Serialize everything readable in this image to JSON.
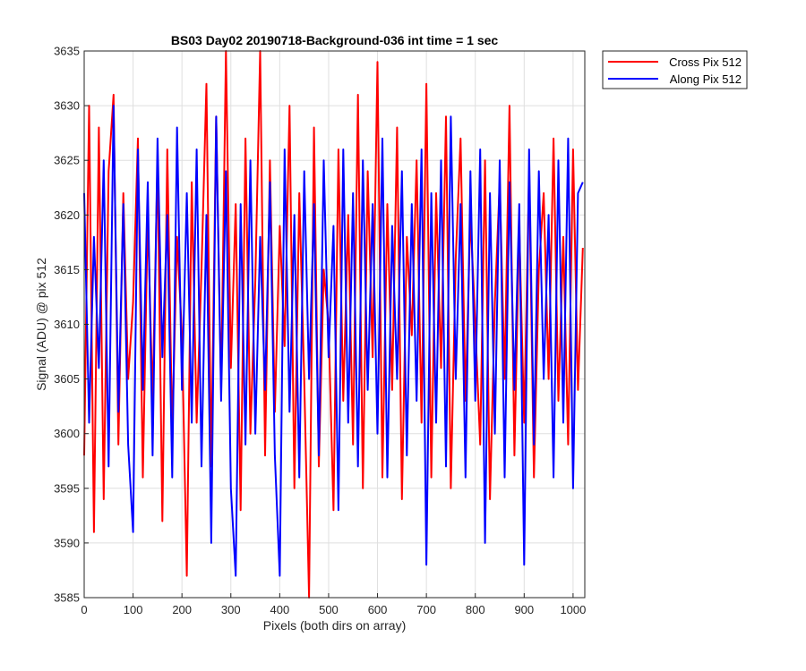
{
  "chart_data": {
    "type": "line",
    "title": "BS03 Day02 20190718-Background-036 int time = 1 sec",
    "xlabel": "Pixels (both dirs on array)",
    "ylabel": "Signal (ADU) @ pix 512",
    "xlim": [
      0,
      1024
    ],
    "ylim": [
      3585,
      3635
    ],
    "xticks": [
      "0",
      "100",
      "200",
      "300",
      "400",
      "500",
      "600",
      "700",
      "800",
      "900",
      "1000"
    ],
    "yticks": [
      "3585",
      "3590",
      "3595",
      "3600",
      "3605",
      "3610",
      "3615",
      "3620",
      "3625",
      "3630",
      "3635"
    ],
    "grid": true,
    "legend_position": "outside-top-right",
    "series": [
      {
        "name": "Cross Pix 512",
        "color": "#ff0000",
        "x": [
          0,
          10,
          20,
          30,
          40,
          50,
          60,
          70,
          80,
          90,
          100,
          110,
          120,
          130,
          140,
          150,
          160,
          170,
          180,
          190,
          200,
          210,
          220,
          230,
          240,
          250,
          260,
          270,
          280,
          290,
          300,
          310,
          320,
          330,
          340,
          350,
          360,
          370,
          380,
          390,
          400,
          410,
          420,
          430,
          440,
          450,
          460,
          470,
          480,
          490,
          500,
          510,
          520,
          530,
          540,
          550,
          560,
          570,
          580,
          590,
          600,
          610,
          620,
          630,
          640,
          650,
          660,
          670,
          680,
          690,
          700,
          710,
          720,
          730,
          740,
          750,
          760,
          770,
          780,
          790,
          800,
          810,
          820,
          830,
          840,
          850,
          860,
          870,
          880,
          890,
          900,
          910,
          920,
          930,
          940,
          950,
          960,
          970,
          980,
          990,
          1000,
          1010,
          1020
        ],
        "y": [
          3598,
          3630,
          3591,
          3628,
          3594,
          3624,
          3631,
          3599,
          3622,
          3605,
          3612,
          3627,
          3596,
          3620,
          3603,
          3625,
          3592,
          3626,
          3600,
          3618,
          3609,
          3587,
          3623,
          3601,
          3615,
          3632,
          3597,
          3629,
          3604,
          3635,
          3606,
          3621,
          3593,
          3627,
          3600,
          3614,
          3635,
          3598,
          3625,
          3602,
          3619,
          3608,
          3630,
          3595,
          3622,
          3605,
          3585,
          3628,
          3597,
          3615,
          3610,
          3593,
          3626,
          3603,
          3620,
          3599,
          3631,
          3595,
          3624,
          3607,
          3634,
          3596,
          3621,
          3604,
          3628,
          3594,
          3618,
          3609,
          3625,
          3601,
          3632,
          3596,
          3622,
          3606,
          3629,
          3595,
          3616,
          3627,
          3603,
          3620,
          3610,
          3599,
          3625,
          3594,
          3612,
          3623,
          3605,
          3630,
          3598,
          3619,
          3601,
          3624,
          3596,
          3615,
          3622,
          3605,
          3627,
          3603,
          3618,
          3599,
          3626,
          3604,
          3617
        ]
      },
      {
        "name": "Along Pix 512",
        "color": "#0000ff",
        "x": [
          0,
          10,
          20,
          30,
          40,
          50,
          60,
          70,
          80,
          90,
          100,
          110,
          120,
          130,
          140,
          150,
          160,
          170,
          180,
          190,
          200,
          210,
          220,
          230,
          240,
          250,
          260,
          270,
          280,
          290,
          300,
          310,
          320,
          330,
          340,
          350,
          360,
          370,
          380,
          390,
          400,
          410,
          420,
          430,
          440,
          450,
          460,
          470,
          480,
          490,
          500,
          510,
          520,
          530,
          540,
          550,
          560,
          570,
          580,
          590,
          600,
          610,
          620,
          630,
          640,
          650,
          660,
          670,
          680,
          690,
          700,
          710,
          720,
          730,
          740,
          750,
          760,
          770,
          780,
          790,
          800,
          810,
          820,
          830,
          840,
          850,
          860,
          870,
          880,
          890,
          900,
          910,
          920,
          930,
          940,
          950,
          960,
          970,
          980,
          990,
          1000,
          1010,
          1020
        ],
        "y": [
          3622,
          3601,
          3618,
          3606,
          3625,
          3597,
          3630,
          3602,
          3621,
          3599,
          3591,
          3626,
          3604,
          3623,
          3598,
          3627,
          3607,
          3620,
          3596,
          3628,
          3604,
          3622,
          3601,
          3626,
          3597,
          3620,
          3590,
          3629,
          3603,
          3624,
          3595,
          3587,
          3621,
          3599,
          3625,
          3600,
          3618,
          3604,
          3623,
          3598,
          3587,
          3626,
          3602,
          3620,
          3596,
          3624,
          3605,
          3621,
          3598,
          3625,
          3607,
          3619,
          3593,
          3626,
          3601,
          3622,
          3597,
          3625,
          3604,
          3621,
          3600,
          3627,
          3596,
          3619,
          3605,
          3624,
          3598,
          3621,
          3603,
          3626,
          3588,
          3622,
          3601,
          3625,
          3597,
          3629,
          3605,
          3621,
          3596,
          3624,
          3603,
          3626,
          3590,
          3622,
          3600,
          3625,
          3596,
          3623,
          3604,
          3621,
          3588,
          3626,
          3599,
          3624,
          3605,
          3620,
          3596,
          3625,
          3601,
          3627,
          3595,
          3622,
          3623
        ]
      }
    ]
  }
}
